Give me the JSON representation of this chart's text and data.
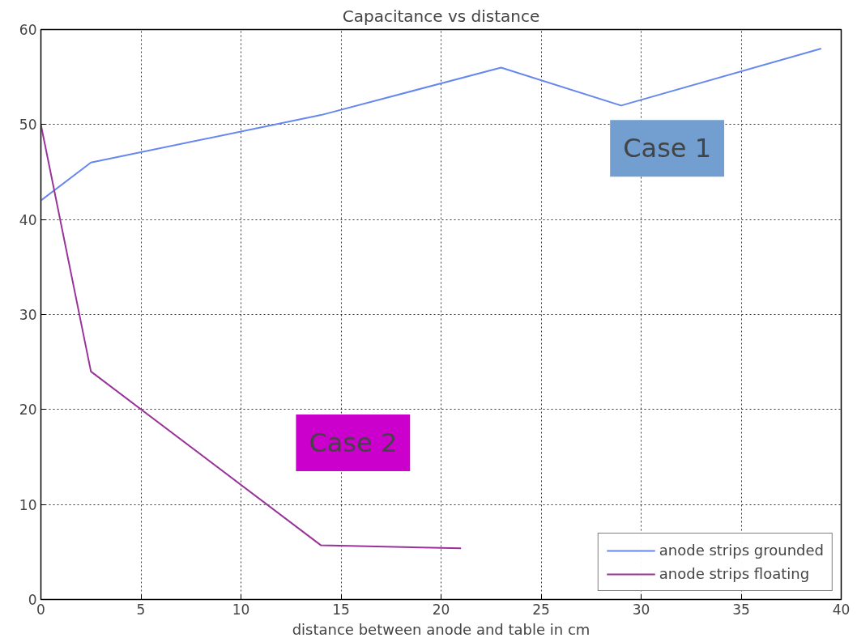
{
  "chart_data": {
    "type": "line",
    "title": "Capacitance vs distance",
    "xlabel": "distance between anode and table in cm",
    "x": [
      0,
      2.5,
      14,
      23,
      29,
      39
    ],
    "series": [
      {
        "name": "anode strips grounded",
        "color": "#6688ee",
        "values": [
          42,
          46,
          51,
          56,
          52,
          58
        ]
      },
      {
        "name": "anode strips floating",
        "color": "#993399",
        "x": [
          0,
          2.5,
          14,
          21
        ],
        "values": [
          50,
          24,
          5.7,
          5.4
        ]
      }
    ],
    "xlim": [
      0,
      40
    ],
    "ylim": [
      0,
      60
    ],
    "xticks": [
      0,
      5,
      10,
      15,
      20,
      25,
      30,
      35,
      40
    ],
    "yticks": [
      0,
      10,
      20,
      30,
      40,
      50,
      60
    ],
    "grid": true,
    "legend": "bottom right",
    "line_style": "solid",
    "marker": "none",
    "annotations": [
      "Case 1",
      "Case 2"
    ]
  }
}
